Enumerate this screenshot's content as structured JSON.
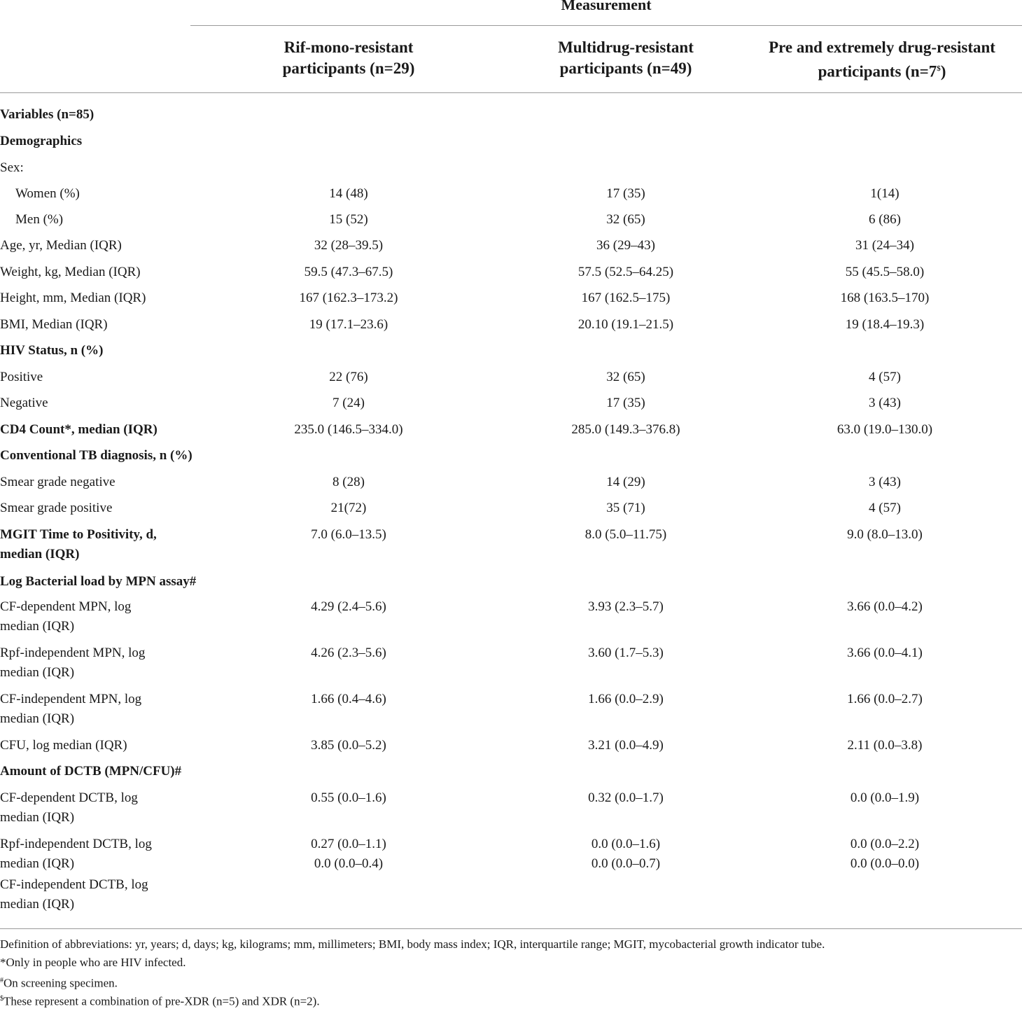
{
  "header": {
    "measurement": "Measurement",
    "columns": [
      {
        "line1": "Rif-mono-resistant",
        "line2": "participants (n=29)",
        "sup": ""
      },
      {
        "line1": "Multidrug-resistant",
        "line2": "participants (n=49)",
        "sup": ""
      },
      {
        "line1": "Pre and extremely drug-resistant",
        "line2": "participants (n=7",
        "sup": "$",
        "close": ")"
      }
    ]
  },
  "rows": [
    {
      "label": "Variables (n=85)",
      "bold": true,
      "v": [
        "",
        "",
        ""
      ]
    },
    {
      "label": "Demographics",
      "bold": true,
      "v": [
        "",
        "",
        ""
      ]
    },
    {
      "label": "Sex:",
      "v": [
        "",
        "",
        ""
      ]
    },
    {
      "label": "Women (%)",
      "indent": true,
      "v": [
        "14 (48)",
        "17 (35)",
        "1(14)"
      ]
    },
    {
      "label": "Men (%)",
      "indent": true,
      "v": [
        "15 (52)",
        "32 (65)",
        "6 (86)"
      ]
    },
    {
      "label": "Age, yr, Median (IQR)",
      "v": [
        "32 (28–39.5)",
        "36 (29–43)",
        "31 (24–34)"
      ]
    },
    {
      "label": "Weight, kg, Median (IQR)",
      "v": [
        "59.5 (47.3–67.5)",
        "57.5 (52.5–64.25)",
        "55 (45.5–58.0)"
      ]
    },
    {
      "label": "Height, mm, Median (IQR)",
      "v": [
        "167 (162.3–173.2)",
        "167 (162.5–175)",
        "168 (163.5–170)"
      ]
    },
    {
      "label": "BMI, Median (IQR)",
      "v": [
        "19 (17.1–23.6)",
        "20.10 (19.1–21.5)",
        "19 (18.4–19.3)"
      ]
    },
    {
      "label": "HIV Status, n (%)",
      "bold": true,
      "v": [
        "",
        "",
        ""
      ]
    },
    {
      "label": "Positive",
      "v": [
        "22 (76)",
        "32 (65)",
        "4 (57)"
      ]
    },
    {
      "label": "Negative",
      "v": [
        "7 (24)",
        "17 (35)",
        "3 (43)"
      ]
    },
    {
      "label": "CD4 Count*, median (IQR)",
      "bold": true,
      "v": [
        "235.0 (146.5–334.0)",
        "285.0 (149.3–376.8)",
        "63.0 (19.0–130.0)"
      ]
    },
    {
      "label": "Conventional TB diagnosis, n (%)",
      "bold": true,
      "v": [
        "",
        "",
        ""
      ]
    },
    {
      "label": "Smear grade negative",
      "v": [
        "8 (28)",
        "14 (29)",
        "3 (43)"
      ]
    },
    {
      "label": "Smear grade positive",
      "v": [
        "21(72)",
        "35 (71)",
        "4 (57)"
      ]
    },
    {
      "label": "MGIT Time to Positivity, d,",
      "label2": "median (IQR)",
      "bold": true,
      "v": [
        "7.0 (6.0–13.5)",
        "8.0 (5.0–11.75)",
        "9.0 (8.0–13.0)"
      ]
    },
    {
      "label": "Log Bacterial load by MPN assay#",
      "bold": true,
      "v": [
        "",
        "",
        ""
      ]
    },
    {
      "label": "CF-dependent MPN, log",
      "label2": "median (IQR)",
      "v": [
        "4.29 (2.4–5.6)",
        "3.93 (2.3–5.7)",
        "3.66 (0.0–4.2)"
      ]
    },
    {
      "label": "Rpf-independent MPN, log",
      "label2": "median (IQR)",
      "v": [
        "4.26 (2.3–5.6)",
        "3.60 (1.7–5.3)",
        "3.66 (0.0–4.1)"
      ]
    },
    {
      "label": "CF-independent MPN, log",
      "label2": "median (IQR)",
      "v": [
        "1.66 (0.4–4.6)",
        "1.66 (0.0–2.9)",
        "1.66 (0.0–2.7)"
      ]
    },
    {
      "label": "CFU, log median (IQR)",
      "v": [
        "3.85 (0.0–5.2)",
        "3.21 (0.0–4.9)",
        "2.11 (0.0–3.8)"
      ]
    },
    {
      "label": "Amount of DCTB (MPN/CFU)#",
      "bold": true,
      "v": [
        "",
        "",
        ""
      ]
    },
    {
      "label": "CF-dependent DCTB, log",
      "label2": "median (IQR)",
      "v": [
        "0.55 (0.0–1.6)",
        "0.32 (0.0–1.7)",
        "0.0 (0.0–1.9)"
      ]
    },
    {
      "label": "Rpf-independent DCTB, log",
      "label2": "median (IQR)",
      "v": [
        "0.27 (0.0–1.1)",
        "0.0 (0.0–1.6)",
        "0.0 (0.0–2.2)"
      ],
      "v2": [
        "0.0 (0.0–0.4)",
        "0.0 (0.0–0.7)",
        "0.0 (0.0–0.0)"
      ]
    },
    {
      "label": "CF-independent DCTB, log",
      "label2": "median (IQR)",
      "v": [
        "",
        "",
        ""
      ]
    }
  ],
  "footnotes": [
    {
      "mark": "",
      "text": "Definition of abbreviations: yr, years; d, days; kg, kilograms; mm, millimeters; BMI, body mass index; IQR, interquartile range; MGIT, mycobacterial growth indicator tube."
    },
    {
      "mark": "",
      "text": "*Only in people who are HIV infected."
    },
    {
      "mark": "#",
      "text": "On screening specimen."
    },
    {
      "mark": "$",
      "text": "These represent a combination of pre-XDR (n=5) and XDR (n=2)."
    }
  ]
}
